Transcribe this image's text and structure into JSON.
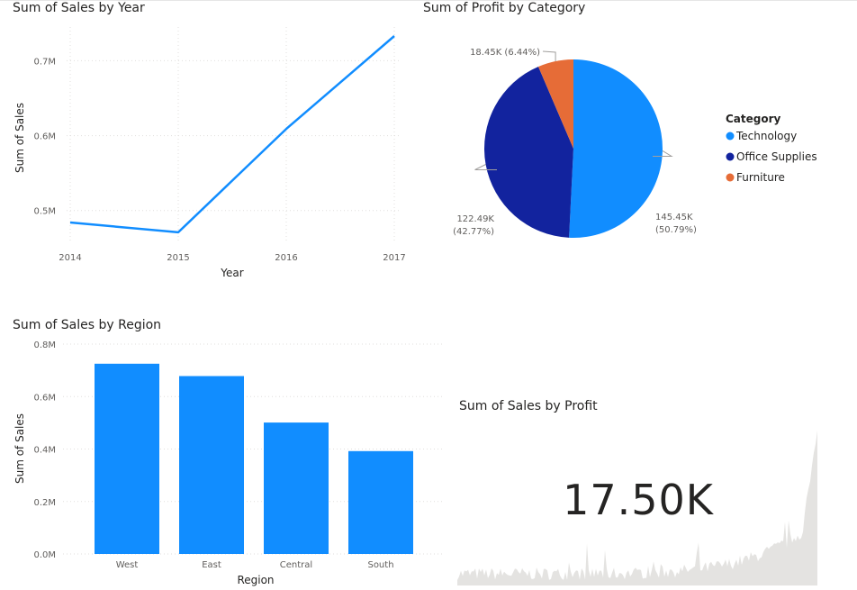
{
  "line_visual": {
    "title": "Sum of Sales by Year"
  },
  "pie_visual": {
    "title": "Sum of Profit by Category"
  },
  "bar_visual": {
    "title": "Sum of Sales by Region"
  },
  "card_visual": {
    "title": "Sum of Sales by Profit",
    "value": "17.50K"
  },
  "colors": {
    "technology": "#118DFF",
    "office_supplies": "#12239E",
    "furniture": "#E66C37",
    "bar": "#118DFF",
    "line": "#118DFF"
  },
  "chart_data": [
    {
      "type": "line",
      "title": "Sum of Sales by Year",
      "xlabel": "Year",
      "ylabel": "Sum of Sales",
      "x": [
        "2014",
        "2015",
        "2016",
        "2017"
      ],
      "series": [
        {
          "values": [
            484000,
            471000,
            609000,
            733000
          ]
        }
      ],
      "ylim": [
        0.46,
        0.745
      ],
      "yticks": [
        0.5,
        0.6,
        0.7
      ],
      "ytick_labels": [
        "0.5M",
        "0.6M",
        "0.7M"
      ],
      "grid": true
    },
    {
      "type": "pie",
      "title": "Sum of Profit by Category",
      "legend_title": "Category",
      "legend_position": "right",
      "slices": [
        {
          "label": "Technology",
          "value": 145450,
          "data_label": "145.45K",
          "percent_label": "(50.79%)",
          "color": "#118DFF"
        },
        {
          "label": "Office Supplies",
          "value": 122490,
          "data_label": "122.49K",
          "percent_label": "(42.77%)",
          "color": "#12239E"
        },
        {
          "label": "Furniture",
          "value": 18450,
          "data_label": "18.45K (6.44%)",
          "percent_label": "",
          "color": "#E66C37"
        }
      ]
    },
    {
      "type": "bar",
      "title": "Sum of Sales by Region",
      "xlabel": "Region",
      "ylabel": "Sum of Sales",
      "categories": [
        "West",
        "East",
        "Central",
        "South"
      ],
      "values": [
        725000,
        678000,
        501000,
        392000
      ],
      "ylim": [
        0,
        0.8
      ],
      "yticks": [
        0,
        0.2,
        0.4,
        0.6,
        0.8
      ],
      "ytick_labels": [
        "0.0M",
        "0.2M",
        "0.4M",
        "0.6M",
        "0.8M"
      ],
      "grid": true
    }
  ]
}
